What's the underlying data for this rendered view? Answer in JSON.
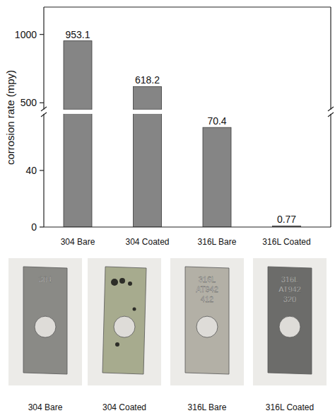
{
  "chart_data": {
    "type": "bar",
    "y_label": "corrosion rate (mpy)",
    "categories": [
      "304 Bare",
      "304 Coated",
      "316L Bare",
      "316L Coated"
    ],
    "values": [
      953.1,
      618.2,
      70.4,
      0.77
    ],
    "color": "#858585",
    "data_labels": true,
    "axis_segments": [
      {
        "ylim": [
          0,
          80
        ],
        "yticks": [
          0,
          40
        ]
      },
      {
        "ylim": [
          450,
          1200
        ],
        "yticks": [
          500,
          1000
        ]
      }
    ]
  },
  "photos": [
    {
      "caption": "304 Bare",
      "engraving": [
        "304"
      ],
      "color": "#8a8a86"
    },
    {
      "caption": "304 Coated",
      "engraving": [],
      "color": "#a7ab8e"
    },
    {
      "caption": "316L Bare",
      "engraving": [
        "316L",
        "AT942",
        "412"
      ],
      "color": "#b3b0a6"
    },
    {
      "caption": "316L Coated",
      "engraving": [
        "316L",
        "AT942",
        "320"
      ],
      "color": "#6c6c6a"
    }
  ]
}
